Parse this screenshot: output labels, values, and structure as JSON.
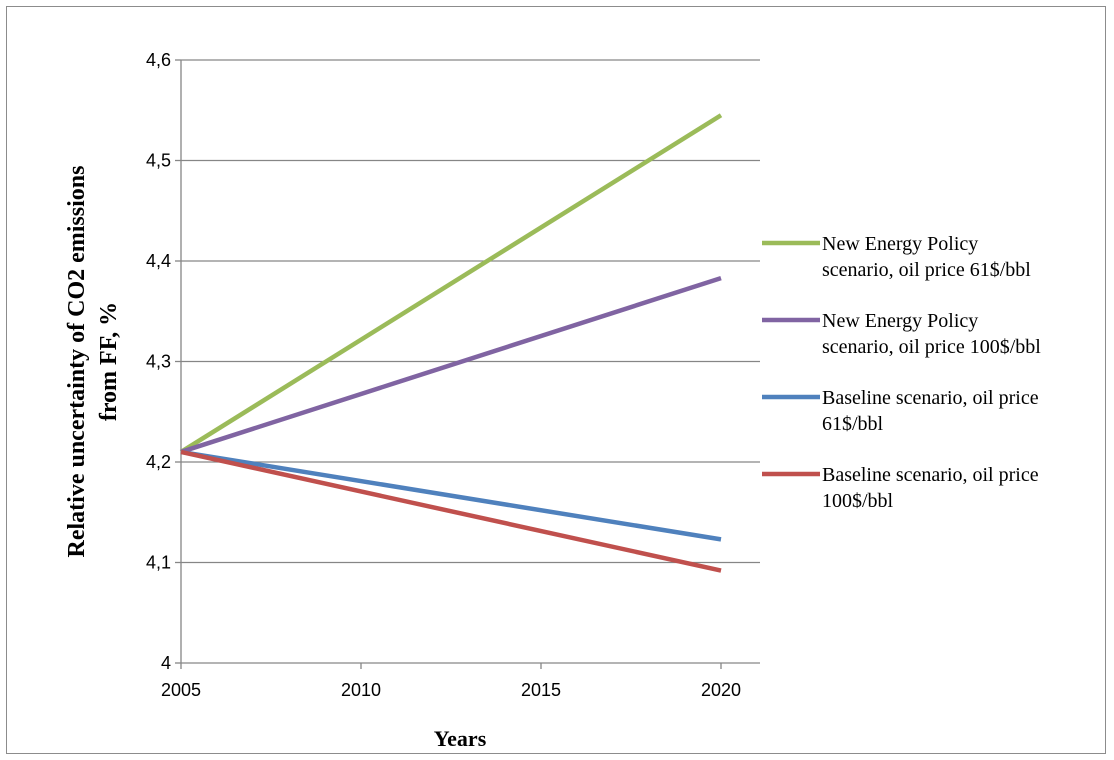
{
  "chart_data": {
    "type": "line",
    "xlabel": "Years",
    "ylabel": "Relative uncertainty of CO2 emissions from FF, %",
    "ylabel_lines": [
      "Relative uncertainty of CO2 emissions",
      "from FF, %"
    ],
    "x_categories": [
      "2005",
      "2010",
      "2015",
      "2020"
    ],
    "ylim": [
      4.0,
      4.6
    ],
    "y_ticks": [
      {
        "value": 4.0,
        "label": "4"
      },
      {
        "value": 4.1,
        "label": "4,1"
      },
      {
        "value": 4.2,
        "label": "4,2"
      },
      {
        "value": 4.3,
        "label": "4,3"
      },
      {
        "value": 4.4,
        "label": "4,4"
      },
      {
        "value": 4.5,
        "label": "4,5"
      },
      {
        "value": 4.6,
        "label": "4,6"
      }
    ],
    "grid": true,
    "legend_position": "right",
    "series": [
      {
        "name": "New Energy Policy scenario, oil price 61$/bbl",
        "legend_lines": [
          "New Energy Policy",
          "scenario, oil price 61$/bbl"
        ],
        "color": "#9BBB59",
        "x": [
          "2005",
          "2020"
        ],
        "values": [
          4.21,
          4.545
        ]
      },
      {
        "name": "New Energy Policy scenario, oil price 100$/bbl",
        "legend_lines": [
          "New Energy Policy",
          "scenario, oil price 100$/bbl"
        ],
        "color": "#8064A2",
        "x": [
          "2005",
          "2020"
        ],
        "values": [
          4.21,
          4.383
        ]
      },
      {
        "name": "Baseline scenario, oil price 61$/bbl",
        "legend_lines": [
          "Baseline scenario, oil price",
          "61$/bbl"
        ],
        "color": "#4F81BD",
        "x": [
          "2005",
          "2020"
        ],
        "values": [
          4.21,
          4.123
        ]
      },
      {
        "name": "Baseline scenario, oil price 100$/bbl",
        "legend_lines": [
          "Baseline scenario, oil price",
          "100$/bbl"
        ],
        "color": "#C0504D",
        "x": [
          "2005",
          "2020"
        ],
        "values": [
          4.21,
          4.092
        ]
      }
    ]
  }
}
